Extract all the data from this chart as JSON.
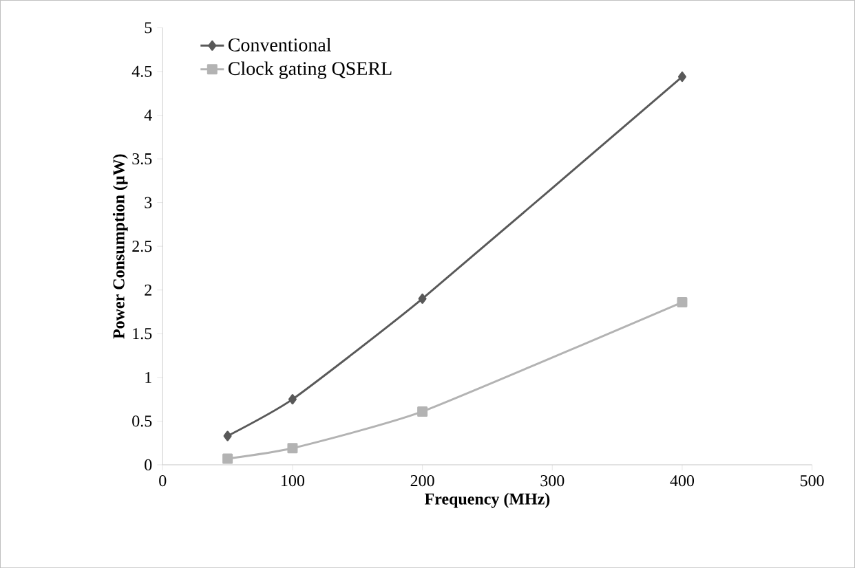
{
  "chart_data": {
    "type": "line",
    "xlabel": "Frequency (MHz)",
    "ylabel": "Power Consumption (µW)",
    "x": [
      50,
      100,
      200,
      400
    ],
    "series": [
      {
        "name": "Conventional",
        "color": "#595959",
        "marker": "diamond",
        "values": [
          0.33,
          0.75,
          1.9,
          4.44
        ]
      },
      {
        "name": "Clock gating QSERL",
        "color": "#b3b3b3",
        "marker": "square",
        "values": [
          0.07,
          0.19,
          0.61,
          1.86
        ]
      }
    ],
    "xlim": [
      0,
      500
    ],
    "xticks": [
      0,
      100,
      200,
      300,
      400,
      500
    ],
    "ylim": [
      0,
      5
    ],
    "yticks": [
      0,
      0.5,
      1,
      1.5,
      2,
      2.5,
      3,
      3.5,
      4,
      4.5,
      5
    ],
    "grid": false,
    "legend": "top left"
  }
}
